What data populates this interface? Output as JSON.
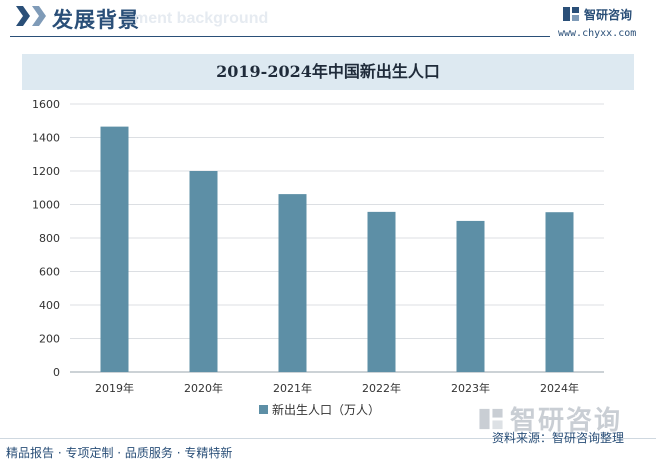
{
  "header": {
    "title": "发展背景",
    "subtitle": "ment background",
    "brand_name": "智研咨询",
    "brand_url": "www.chyxx.com",
    "accent_color": "#2a4f78"
  },
  "watermark": {
    "text": "智研咨询",
    "icon": "chyxx-logo-icon"
  },
  "footer": {
    "left": "精品报告 · 专项定制 · 品质服务 · 专精特新",
    "right": "资料来源：智研咨询整理"
  },
  "chart_data": {
    "type": "bar",
    "title": "2019-2024年中国新出生人口",
    "categories": [
      "2019年",
      "2020年",
      "2021年",
      "2022年",
      "2023年",
      "2024年"
    ],
    "series": [
      {
        "name": "新出生人口（万人）",
        "values": [
          1465,
          1200,
          1062,
          956,
          902,
          954
        ],
        "color": "#5d8fa6"
      }
    ],
    "ylim": [
      0,
      1600
    ],
    "yticks": [
      0,
      200,
      400,
      600,
      800,
      1000,
      1200,
      1400,
      1600
    ],
    "grid": true,
    "legend_position": "bottom"
  }
}
